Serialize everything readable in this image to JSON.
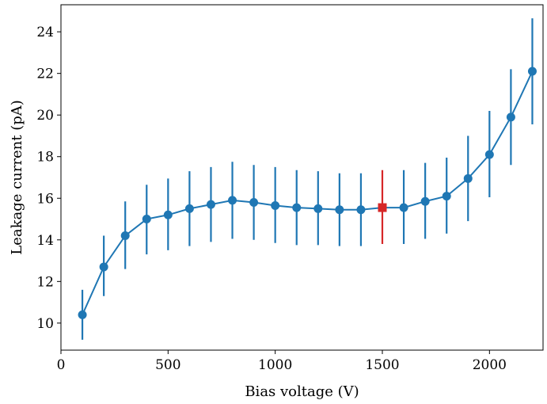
{
  "chart_data": {
    "type": "scatter",
    "title": "",
    "xlabel": "Bias voltage (V)",
    "ylabel": "Leakage current (pA)",
    "xlim": [
      0,
      2250
    ],
    "ylim": [
      8.7,
      25.3
    ],
    "xticks": [
      0,
      500,
      1000,
      1500,
      2000
    ],
    "yticks": [
      10,
      12,
      14,
      16,
      18,
      20,
      22,
      24
    ],
    "grid": false,
    "series": [
      {
        "color": "#1f77b4",
        "marker": "circle",
        "connected": true,
        "x": [
          100,
          200,
          300,
          400,
          500,
          600,
          700,
          800,
          900,
          1000,
          1100,
          1200,
          1300,
          1400,
          1500,
          1600,
          1700,
          1800,
          1900,
          2000,
          2100,
          2200
        ],
        "y": [
          10.4,
          12.7,
          14.2,
          15.0,
          15.2,
          15.5,
          15.7,
          15.9,
          15.8,
          15.65,
          15.55,
          15.5,
          15.45,
          15.45,
          15.55,
          15.55,
          15.85,
          16.1,
          16.95,
          18.1,
          19.9,
          22.1
        ],
        "err_low": [
          9.2,
          11.3,
          12.6,
          13.3,
          13.5,
          13.7,
          13.9,
          14.05,
          14.0,
          13.85,
          13.75,
          13.75,
          13.7,
          13.7,
          13.8,
          13.8,
          14.05,
          14.3,
          14.9,
          16.05,
          17.6,
          19.55
        ],
        "err_high": [
          11.6,
          14.2,
          15.85,
          16.65,
          16.95,
          17.3,
          17.5,
          17.75,
          17.6,
          17.5,
          17.35,
          17.3,
          17.2,
          17.2,
          17.35,
          17.35,
          17.7,
          17.95,
          19.0,
          20.2,
          22.2,
          24.65
        ]
      }
    ],
    "highlight": {
      "color": "#d62728",
      "marker": "square",
      "x": 1500,
      "y": 15.55,
      "err_low": 13.8,
      "err_high": 17.35
    }
  }
}
